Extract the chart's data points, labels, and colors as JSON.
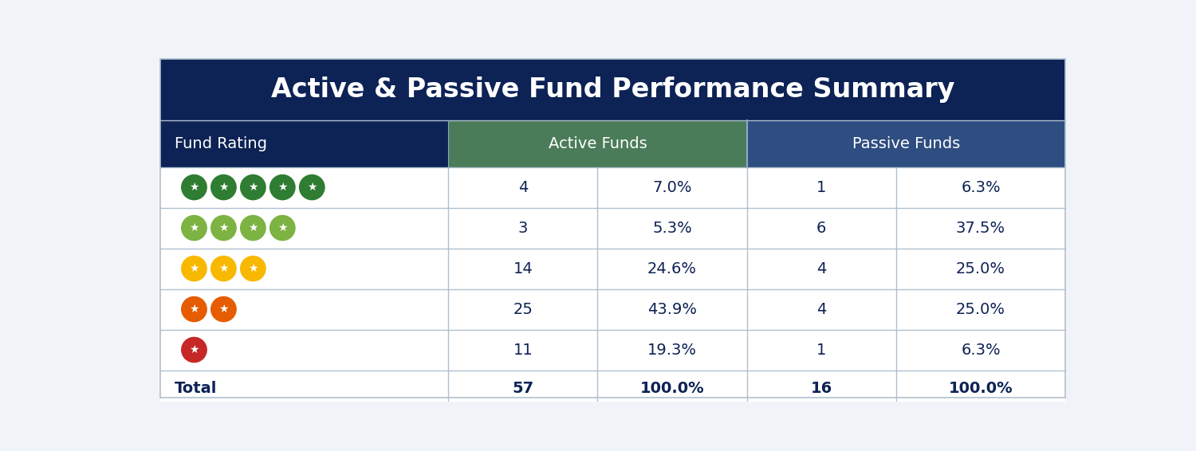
{
  "title": "Active & Passive Fund Performance Summary",
  "title_bg_color": "#0d2255",
  "title_text_color": "#ffffff",
  "active_header_color": "#4a7c59",
  "passive_header_color": "#2e4d80",
  "fund_rating_header_color": "#0d2255",
  "header_text_color": "#ffffff",
  "rows": [
    {
      "stars": 5,
      "star_color": "#2e7d32",
      "active_count": "4",
      "active_pct": "7.0%",
      "passive_count": "1",
      "passive_pct": "6.3%"
    },
    {
      "stars": 4,
      "star_color": "#7cb342",
      "active_count": "3",
      "active_pct": "5.3%",
      "passive_count": "6",
      "passive_pct": "37.5%"
    },
    {
      "stars": 3,
      "star_color": "#f9b800",
      "active_count": "14",
      "active_pct": "24.6%",
      "passive_count": "4",
      "passive_pct": "25.0%"
    },
    {
      "stars": 2,
      "star_color": "#e65c00",
      "active_count": "25",
      "active_pct": "43.9%",
      "passive_count": "4",
      "passive_pct": "25.0%"
    },
    {
      "stars": 1,
      "star_color": "#c62828",
      "active_count": "11",
      "active_pct": "19.3%",
      "passive_count": "1",
      "passive_pct": "6.3%"
    }
  ],
  "total_row": {
    "label": "Total",
    "active_count": "57",
    "active_pct": "100.0%",
    "passive_count": "16",
    "passive_pct": "100.0%"
  },
  "bg_color": "#f0f4f8",
  "table_bg_color": "#ffffff",
  "table_text_color": "#0d2255",
  "grid_color": "#b0c0d0",
  "row_bg_even": "#ffffff",
  "row_bg_odd": "#ffffff",
  "title_fontsize": 24,
  "header_fontsize": 14,
  "data_fontsize": 14,
  "total_fontsize": 14
}
